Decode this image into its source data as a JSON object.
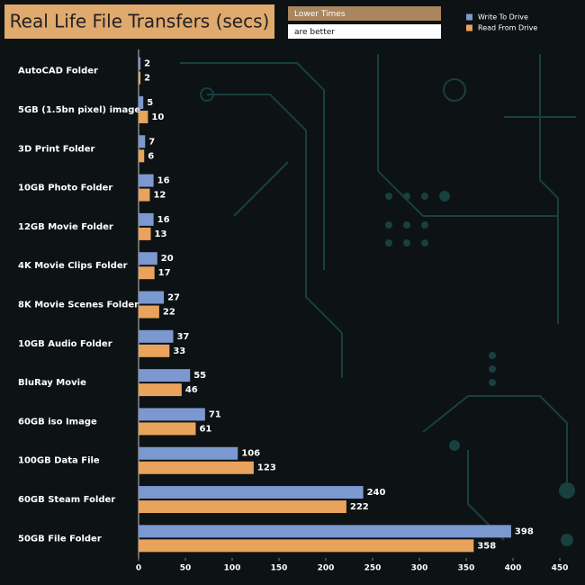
{
  "chart_data": {
    "type": "bar",
    "orientation": "horizontal",
    "title": "Real Life File Transfers (secs)",
    "annotations": [
      "Lower Times",
      "are better"
    ],
    "categories": [
      "AutoCAD Folder",
      "5GB (1.5bn pixel) image",
      "3D Print Folder",
      "10GB Photo Folder",
      "12GB Movie Folder",
      "4K Movie Clips Folder",
      "8K Movie Scenes Folder",
      "10GB Audio Folder",
      "BluRay Movie",
      "60GB iso Image",
      "100GB Data File",
      "60GB Steam Folder",
      "50GB File Folder"
    ],
    "series": [
      {
        "name": "Write To  Drive",
        "color": "#7b98d0",
        "values": [
          2,
          5,
          7,
          16,
          16,
          20,
          27,
          37,
          55,
          71,
          106,
          240,
          398
        ]
      },
      {
        "name": "Read From  Drive",
        "color": "#e9a35c",
        "values": [
          2,
          10,
          6,
          12,
          13,
          17,
          22,
          33,
          46,
          61,
          123,
          222,
          358
        ]
      }
    ],
    "xlim": [
      0,
      450
    ],
    "xticks": [
      0,
      50,
      100,
      150,
      200,
      250,
      300,
      350,
      400,
      450
    ],
    "grid": false,
    "legend": "top-right"
  }
}
